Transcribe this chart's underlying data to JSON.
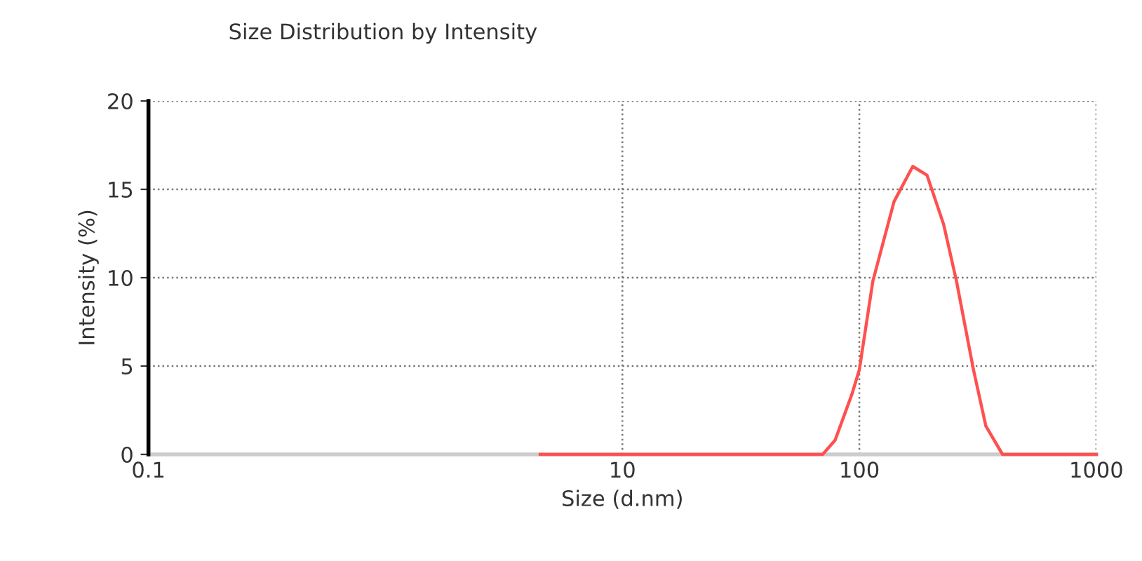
{
  "chart_data": {
    "type": "line",
    "title": "Size Distribution by Intensity",
    "xlabel": "Size (d.nm)",
    "ylabel": "Intensity (%)",
    "log": "x",
    "xlim": [
      0.1,
      1000
    ],
    "ylim": [
      0,
      20
    ],
    "xticks": [
      0.1,
      10,
      100,
      1000
    ],
    "yticks": [
      0,
      5,
      10,
      15,
      20
    ],
    "grid": true,
    "marker": "none",
    "line_style": "solid",
    "series": [
      {
        "color": "#ff5050",
        "x": [
          4.5,
          10,
          40,
          70,
          79,
          93,
          100,
          114,
          140,
          168,
          193,
          227,
          257,
          303,
          342,
          402,
          1000
        ],
        "values": [
          0,
          0,
          0,
          0,
          0.8,
          3.4,
          4.8,
          9.8,
          14.3,
          16.3,
          15.8,
          13.0,
          9.8,
          4.8,
          1.6,
          0,
          0
        ]
      }
    ]
  }
}
